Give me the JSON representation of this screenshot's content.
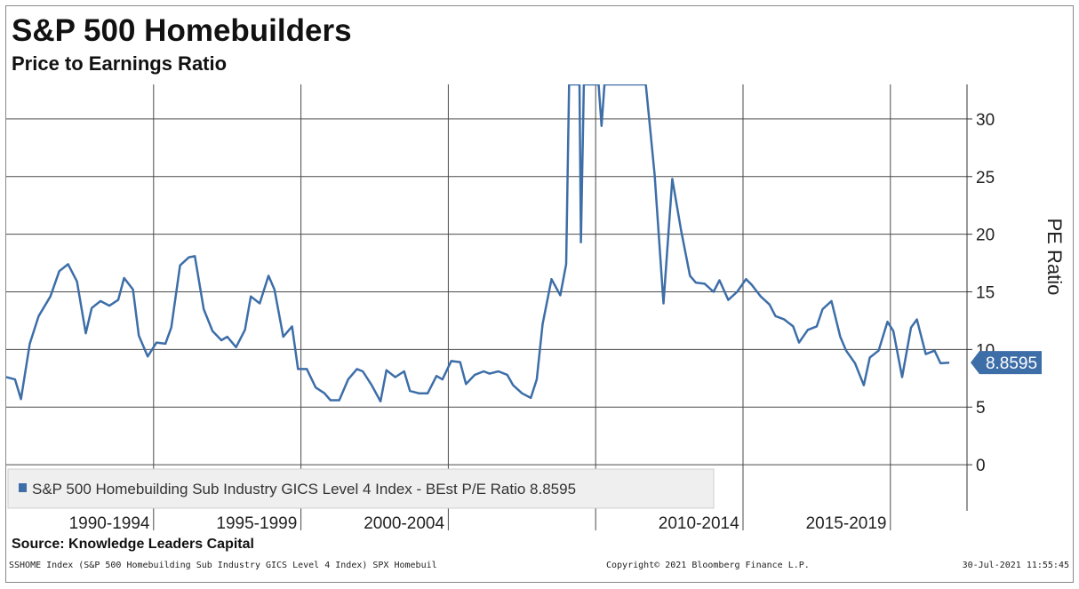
{
  "title": "S&P 500 Homebuilders",
  "subtitle": "Price to Earnings Ratio",
  "source": "Source: Knowledge Leaders Capital",
  "footer": {
    "left": "SSHOME Index (S&P 500 Homebuilding Sub Industry GICS Level 4 Index) SPX Homebuil",
    "middle": "Copyright© 2021 Bloomberg Finance L.P.",
    "right": "30-Jul-2021 11:55:45"
  },
  "colors": {
    "series": "#3d6ea8",
    "grid": "#4a4a4a",
    "legend_bg": "#efefef",
    "last_value_label_bg": "#3d6ea8"
  },
  "chart_data": {
    "type": "line",
    "title": "S&P 500 Homebuilders",
    "subtitle": "Price to Earnings Ratio",
    "ylabel": "PE Ratio",
    "ylim": [
      -4,
      33
    ],
    "y_ticks": [
      0,
      5,
      10,
      15,
      20,
      25,
      30
    ],
    "y_axis_side": "right",
    "x_range": [
      1989.0,
      2021.6
    ],
    "x_category_labels": [
      {
        "label": "1990-1994",
        "center": 1992.5
      },
      {
        "label": "1995-1999",
        "center": 1997.5
      },
      {
        "label": "2000-2004",
        "center": 2002.5
      },
      {
        "label": "2010-2014",
        "center": 2012.5
      },
      {
        "label": "2015-2019",
        "center": 2017.5
      }
    ],
    "vertical_gridlines_at": [
      1994,
      1999,
      2004,
      2009,
      2014,
      2019
    ],
    "grid": true,
    "legend_position": "bottom-left",
    "last_value_label": "8.8595",
    "series": [
      {
        "name": "S&P 500 Homebuilding Sub Industry GICS Level 4 Index - BEst P/E Ratio 8.8595",
        "points": [
          [
            1989.0,
            7.6
          ],
          [
            1989.3,
            7.4
          ],
          [
            1989.5,
            5.7
          ],
          [
            1989.8,
            10.5
          ],
          [
            1990.1,
            12.9
          ],
          [
            1990.5,
            14.6
          ],
          [
            1990.8,
            16.8
          ],
          [
            1991.1,
            17.4
          ],
          [
            1991.4,
            15.9
          ],
          [
            1991.7,
            11.4
          ],
          [
            1991.9,
            13.6
          ],
          [
            1992.2,
            14.2
          ],
          [
            1992.5,
            13.8
          ],
          [
            1992.8,
            14.3
          ],
          [
            1993.0,
            16.2
          ],
          [
            1993.3,
            15.2
          ],
          [
            1993.5,
            11.2
          ],
          [
            1993.8,
            9.4
          ],
          [
            1994.1,
            10.6
          ],
          [
            1994.4,
            10.5
          ],
          [
            1994.6,
            11.9
          ],
          [
            1994.9,
            17.3
          ],
          [
            1995.2,
            18.0
          ],
          [
            1995.4,
            18.1
          ],
          [
            1995.7,
            13.5
          ],
          [
            1996.0,
            11.6
          ],
          [
            1996.3,
            10.8
          ],
          [
            1996.5,
            11.1
          ],
          [
            1996.8,
            10.2
          ],
          [
            1997.1,
            11.7
          ],
          [
            1997.3,
            14.6
          ],
          [
            1997.6,
            14.0
          ],
          [
            1997.9,
            16.4
          ],
          [
            1998.1,
            15.2
          ],
          [
            1998.4,
            11.1
          ],
          [
            1998.7,
            12.0
          ],
          [
            1998.9,
            8.3
          ],
          [
            1999.2,
            8.3
          ],
          [
            1999.5,
            6.7
          ],
          [
            1999.8,
            6.2
          ],
          [
            2000.0,
            5.6
          ],
          [
            2000.3,
            5.6
          ],
          [
            2000.6,
            7.4
          ],
          [
            2000.9,
            8.3
          ],
          [
            2001.1,
            8.1
          ],
          [
            2001.4,
            6.9
          ],
          [
            2001.7,
            5.5
          ],
          [
            2001.9,
            8.2
          ],
          [
            2002.2,
            7.6
          ],
          [
            2002.5,
            8.1
          ],
          [
            2002.7,
            6.4
          ],
          [
            2003.0,
            6.2
          ],
          [
            2003.3,
            6.2
          ],
          [
            2003.6,
            7.7
          ],
          [
            2003.8,
            7.4
          ],
          [
            2004.1,
            9.0
          ],
          [
            2004.4,
            8.9
          ],
          [
            2004.6,
            7.0
          ],
          [
            2004.9,
            7.8
          ],
          [
            2005.2,
            8.1
          ],
          [
            2005.4,
            7.9
          ],
          [
            2005.7,
            8.1
          ],
          [
            2006.0,
            7.8
          ],
          [
            2006.2,
            6.9
          ],
          [
            2006.5,
            6.2
          ],
          [
            2006.8,
            5.8
          ],
          [
            2007.0,
            7.4
          ],
          [
            2007.2,
            12.2
          ],
          [
            2007.5,
            16.1
          ],
          [
            2007.8,
            14.7
          ],
          [
            2008.0,
            17.4
          ],
          [
            2008.1,
            33
          ],
          [
            2008.45,
            33
          ],
          [
            2008.5,
            19.3
          ],
          [
            2008.6,
            33
          ],
          [
            2008.7,
            33
          ],
          [
            2009.1,
            33
          ],
          [
            2009.2,
            29.4
          ],
          [
            2009.3,
            33
          ],
          [
            2010.7,
            33
          ],
          [
            2011.0,
            25.2
          ],
          [
            2011.3,
            14.0
          ],
          [
            2011.6,
            24.8
          ],
          [
            2011.9,
            20.3
          ],
          [
            2012.2,
            16.4
          ],
          [
            2012.4,
            15.8
          ],
          [
            2012.7,
            15.7
          ],
          [
            2013.0,
            15.0
          ],
          [
            2013.2,
            16.0
          ],
          [
            2013.5,
            14.3
          ],
          [
            2013.8,
            15.0
          ],
          [
            2014.1,
            16.1
          ],
          [
            2014.3,
            15.6
          ],
          [
            2014.6,
            14.6
          ],
          [
            2014.9,
            13.9
          ],
          [
            2015.1,
            12.9
          ],
          [
            2015.4,
            12.6
          ],
          [
            2015.7,
            12.0
          ],
          [
            2015.9,
            10.6
          ],
          [
            2016.2,
            11.7
          ],
          [
            2016.5,
            12.0
          ],
          [
            2016.7,
            13.5
          ],
          [
            2017.0,
            14.2
          ],
          [
            2017.3,
            11.1
          ],
          [
            2017.5,
            9.9
          ],
          [
            2017.8,
            8.8
          ],
          [
            2018.1,
            6.9
          ],
          [
            2018.3,
            9.3
          ],
          [
            2018.6,
            9.9
          ],
          [
            2018.9,
            12.4
          ],
          [
            2019.1,
            11.6
          ],
          [
            2019.4,
            7.6
          ],
          [
            2019.7,
            11.9
          ],
          [
            2019.9,
            12.6
          ],
          [
            2020.2,
            9.6
          ],
          [
            2020.5,
            9.9
          ],
          [
            2020.7,
            8.8
          ],
          [
            2021.0,
            8.86
          ]
        ]
      }
    ]
  }
}
